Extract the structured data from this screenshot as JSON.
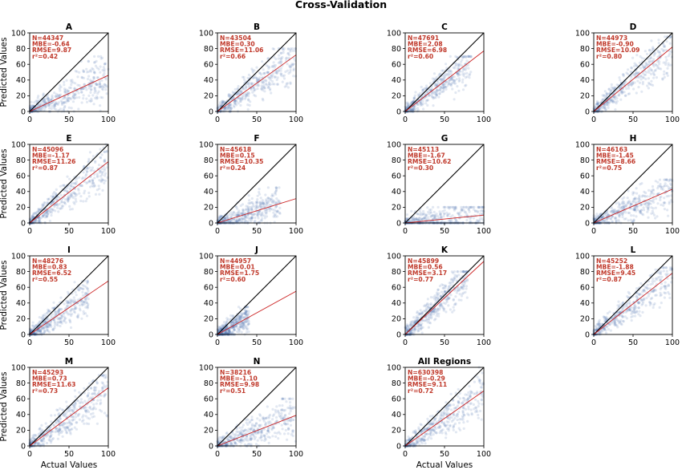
{
  "figure": {
    "title": "Cross-Validation"
  },
  "axis_labels": {
    "x": "Actual Values",
    "y": "Predicted Values"
  },
  "colors": {
    "points": "#4a6fb0",
    "fit_line": "#cc2222",
    "identity_line": "#000000",
    "stats_text": "#c0392b"
  },
  "chart_data": [
    {
      "type": "scatter",
      "title": "A",
      "stats": [
        "N=44347",
        "MBE=-0.64",
        "RMSE=9.87",
        "r²=0.42"
      ],
      "fit_line": {
        "slope": 0.46,
        "intercept": 0
      },
      "identity_line": true,
      "xlim": [
        0,
        100
      ],
      "ylim": [
        0,
        100
      ],
      "x_ticks": [
        0,
        50,
        100
      ],
      "y_ticks": [
        0,
        20,
        40,
        60,
        80,
        100
      ],
      "xlabel": "",
      "ylabel": "Predicted Values",
      "cloud": {
        "x_max": 100,
        "y_max": 70
      }
    },
    {
      "type": "scatter",
      "title": "B",
      "stats": [
        "N=43504",
        "MBE=0.30",
        "RMSE=11.06",
        "r²=0.66"
      ],
      "fit_line": {
        "slope": 0.72,
        "intercept": 0
      },
      "identity_line": true,
      "xlim": [
        0,
        100
      ],
      "ylim": [
        0,
        100
      ],
      "x_ticks": [
        0,
        50,
        100
      ],
      "y_ticks": [
        0,
        20,
        40,
        60,
        80,
        100
      ],
      "xlabel": "",
      "ylabel": "",
      "cloud": {
        "x_max": 100,
        "y_max": 80
      }
    },
    {
      "type": "scatter",
      "title": "C",
      "stats": [
        "N=47691",
        "MBE=2.08",
        "RMSE=6.98",
        "r²=0.60"
      ],
      "fit_line": {
        "slope": 0.77,
        "intercept": 0
      },
      "identity_line": true,
      "xlim": [
        0,
        100
      ],
      "ylim": [
        0,
        100
      ],
      "x_ticks": [
        0,
        50,
        100
      ],
      "y_ticks": [
        0,
        20,
        40,
        60,
        80,
        100
      ],
      "xlabel": "",
      "ylabel": "",
      "cloud": {
        "x_max": 85,
        "y_max": 70
      }
    },
    {
      "type": "scatter",
      "title": "D",
      "stats": [
        "N=44973",
        "MBE=-0.90",
        "RMSE=10.09",
        "r²=0.80"
      ],
      "fit_line": {
        "slope": 0.82,
        "intercept": 0
      },
      "identity_line": true,
      "xlim": [
        0,
        100
      ],
      "ylim": [
        0,
        100
      ],
      "x_ticks": [
        0,
        50,
        100
      ],
      "y_ticks": [
        0,
        20,
        40,
        60,
        80,
        100
      ],
      "xlabel": "",
      "ylabel": "",
      "cloud": {
        "x_max": 100,
        "y_max": 95
      }
    },
    {
      "type": "scatter",
      "title": "E",
      "stats": [
        "N=45096",
        "MBE=-1.17",
        "RMSE=11.26",
        "r²=0.87"
      ],
      "fit_line": {
        "slope": 0.78,
        "intercept": 0
      },
      "identity_line": true,
      "xlim": [
        0,
        100
      ],
      "ylim": [
        0,
        100
      ],
      "x_ticks": [
        0,
        50,
        100
      ],
      "y_ticks": [
        0,
        20,
        40,
        60,
        80,
        100
      ],
      "xlabel": "",
      "ylabel": "Predicted Values",
      "cloud": {
        "x_max": 100,
        "y_max": 100
      }
    },
    {
      "type": "scatter",
      "title": "F",
      "stats": [
        "N=45618",
        "MBE=0.15",
        "RMSE=10.35",
        "r²=0.24"
      ],
      "fit_line": {
        "slope": 0.31,
        "intercept": 0
      },
      "identity_line": true,
      "xlim": [
        0,
        100
      ],
      "ylim": [
        0,
        100
      ],
      "x_ticks": [
        0,
        50,
        100
      ],
      "y_ticks": [
        0,
        20,
        40,
        60,
        80,
        100
      ],
      "xlabel": "",
      "ylabel": "",
      "cloud": {
        "x_max": 80,
        "y_max": 45
      }
    },
    {
      "type": "scatter",
      "title": "G",
      "stats": [
        "N=45113",
        "MBE=-1.67",
        "RMSE=10.62",
        "r²=0.30"
      ],
      "fit_line": {
        "slope": 0.1,
        "intercept": 0
      },
      "identity_line": true,
      "xlim": [
        0,
        100
      ],
      "ylim": [
        0,
        100
      ],
      "x_ticks": [
        0,
        50,
        100
      ],
      "y_ticks": [
        0,
        20,
        40,
        60,
        80,
        100
      ],
      "xlabel": "",
      "ylabel": "",
      "cloud": {
        "x_max": 100,
        "y_max": 20
      }
    },
    {
      "type": "scatter",
      "title": "H",
      "stats": [
        "N=46163",
        "MBE=-1.45",
        "RMSE=8.66",
        "r²=0.75"
      ],
      "fit_line": {
        "slope": 0.43,
        "intercept": 0
      },
      "identity_line": true,
      "xlim": [
        0,
        100
      ],
      "ylim": [
        0,
        100
      ],
      "x_ticks": [
        0,
        50,
        100
      ],
      "y_ticks": [
        0,
        20,
        40,
        60,
        80,
        100
      ],
      "xlabel": "",
      "ylabel": "",
      "cloud": {
        "x_max": 100,
        "y_max": 55
      }
    },
    {
      "type": "scatter",
      "title": "I",
      "stats": [
        "N=48276",
        "MBE=0.83",
        "RMSE=6.52",
        "r²=0.55"
      ],
      "fit_line": {
        "slope": 0.68,
        "intercept": 0
      },
      "identity_line": true,
      "xlim": [
        0,
        100
      ],
      "ylim": [
        0,
        100
      ],
      "x_ticks": [
        0,
        50,
        100
      ],
      "y_ticks": [
        0,
        20,
        40,
        60,
        80,
        100
      ],
      "xlabel": "",
      "ylabel": "Predicted Values",
      "cloud": {
        "x_max": 75,
        "y_max": 70
      }
    },
    {
      "type": "scatter",
      "title": "J",
      "stats": [
        "N=44957",
        "MBE=0.01",
        "RMSE=1.75",
        "r²=0.60"
      ],
      "fit_line": {
        "slope": 0.55,
        "intercept": 0
      },
      "identity_line": true,
      "xlim": [
        0,
        100
      ],
      "ylim": [
        0,
        100
      ],
      "x_ticks": [
        0,
        50,
        100
      ],
      "y_ticks": [
        0,
        20,
        40,
        60,
        80,
        100
      ],
      "xlabel": "",
      "ylabel": "",
      "cloud": {
        "x_max": 40,
        "y_max": 35
      }
    },
    {
      "type": "scatter",
      "title": "K",
      "stats": [
        "N=45899",
        "MBE=0.56",
        "RMSE=3.17",
        "r²=0.77"
      ],
      "fit_line": {
        "slope": 0.93,
        "intercept": 0
      },
      "identity_line": true,
      "xlim": [
        0,
        100
      ],
      "ylim": [
        0,
        100
      ],
      "x_ticks": [
        0,
        50,
        100
      ],
      "y_ticks": [
        0,
        20,
        40,
        60,
        80,
        100
      ],
      "xlabel": "",
      "ylabel": "",
      "cloud": {
        "x_max": 80,
        "y_max": 80
      }
    },
    {
      "type": "scatter",
      "title": "L",
      "stats": [
        "N=45252",
        "MBE=-1.88",
        "RMSE=9.45",
        "r²=0.87"
      ],
      "fit_line": {
        "slope": 0.78,
        "intercept": 0
      },
      "identity_line": true,
      "xlim": [
        0,
        100
      ],
      "ylim": [
        0,
        100
      ],
      "x_ticks": [
        0,
        50,
        100
      ],
      "y_ticks": [
        0,
        20,
        40,
        60,
        80,
        100
      ],
      "xlabel": "",
      "ylabel": "",
      "cloud": {
        "x_max": 100,
        "y_max": 85
      }
    },
    {
      "type": "scatter",
      "title": "M",
      "stats": [
        "N=45293",
        "MBE=0.73",
        "RMSE=11.63",
        "r²=0.73"
      ],
      "fit_line": {
        "slope": 0.74,
        "intercept": 0
      },
      "identity_line": true,
      "xlim": [
        0,
        100
      ],
      "ylim": [
        0,
        100
      ],
      "x_ticks": [
        0,
        50,
        100
      ],
      "y_ticks": [
        0,
        20,
        40,
        60,
        80,
        100
      ],
      "xlabel": "Actual Values",
      "ylabel": "Predicted Values",
      "cloud": {
        "x_max": 100,
        "y_max": 90
      }
    },
    {
      "type": "scatter",
      "title": "N",
      "stats": [
        "N=38216",
        "MBE=-1.10",
        "RMSE=9.98",
        "r²=0.51"
      ],
      "fit_line": {
        "slope": 0.39,
        "intercept": 0
      },
      "identity_line": true,
      "xlim": [
        0,
        100
      ],
      "ylim": [
        0,
        100
      ],
      "x_ticks": [
        0,
        50,
        100
      ],
      "y_ticks": [
        0,
        20,
        40,
        60,
        80,
        100
      ],
      "xlabel": "",
      "ylabel": "",
      "cloud": {
        "x_max": 100,
        "y_max": 60
      }
    },
    {
      "type": "scatter",
      "title": "All Regions",
      "stats": [
        "N=630398",
        "MBE=-0.29",
        "RMSE=9.11",
        "r²=0.72"
      ],
      "fit_line": {
        "slope": 0.7,
        "intercept": 0
      },
      "identity_line": true,
      "xlim": [
        0,
        100
      ],
      "ylim": [
        0,
        100
      ],
      "x_ticks": [
        0,
        50,
        100
      ],
      "y_ticks": [
        0,
        20,
        40,
        60,
        80,
        100
      ],
      "xlabel": "Actual Values",
      "ylabel": "",
      "cloud": {
        "x_max": 100,
        "y_max": 100
      }
    }
  ]
}
